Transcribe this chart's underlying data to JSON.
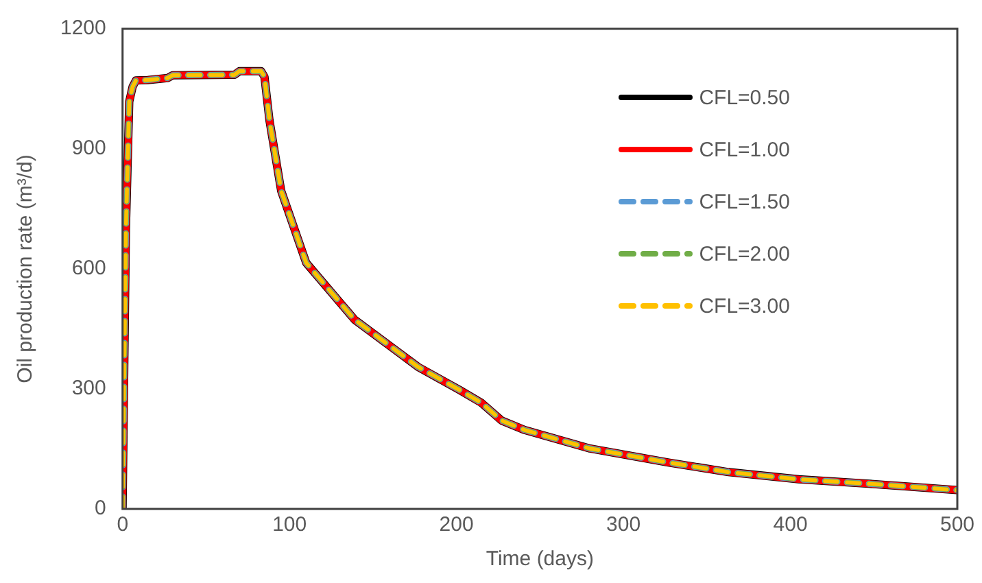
{
  "chart_data": {
    "type": "line",
    "xlabel": "Time (days)",
    "ylabel": "Oil production rate (m³/d)",
    "xlim": [
      0,
      500
    ],
    "xticks": [
      0,
      100,
      200,
      300,
      400,
      500
    ],
    "ylim": [
      0,
      1200
    ],
    "yticks": [
      0,
      300,
      600,
      900,
      1200
    ],
    "grid": false,
    "legend": "top right",
    "marker": "none",
    "x": [
      0,
      2,
      4,
      6,
      8,
      15,
      27,
      30,
      67,
      70,
      83,
      85,
      88,
      95,
      110,
      139,
      177,
      202,
      215,
      227,
      241,
      280,
      327,
      363,
      405,
      447,
      500
    ],
    "series": [
      {
        "name": "CFL=0.50",
        "color": "#000000",
        "line_style": "solid",
        "values": [
          0,
          700,
          1018,
          1055,
          1071,
          1072,
          1077,
          1084,
          1085,
          1094,
          1094,
          1080,
          971,
          795,
          615,
          473,
          355,
          297,
          265,
          221,
          197,
          151,
          116,
          92,
          74,
          63,
          47
        ]
      },
      {
        "name": "CFL=1.00",
        "color": "#ff0000",
        "line_style": "solid",
        "values": [
          0,
          700,
          1018,
          1055,
          1071,
          1072,
          1077,
          1084,
          1085,
          1094,
          1094,
          1080,
          971,
          795,
          615,
          473,
          355,
          297,
          265,
          221,
          197,
          151,
          116,
          92,
          74,
          63,
          47
        ]
      },
      {
        "name": "CFL=1.50",
        "color": "#5b9bd5",
        "line_style": "dashed",
        "values": [
          0,
          700,
          1018,
          1055,
          1071,
          1072,
          1077,
          1084,
          1085,
          1094,
          1094,
          1080,
          971,
          795,
          615,
          473,
          355,
          297,
          265,
          221,
          197,
          151,
          116,
          92,
          74,
          63,
          47
        ]
      },
      {
        "name": "CFL=2.00",
        "color": "#70ad47",
        "line_style": "dashed",
        "values": [
          0,
          700,
          1018,
          1055,
          1071,
          1072,
          1077,
          1084,
          1085,
          1094,
          1094,
          1080,
          971,
          795,
          615,
          473,
          355,
          297,
          265,
          221,
          197,
          151,
          116,
          92,
          74,
          63,
          47
        ]
      },
      {
        "name": "CFL=3.00",
        "color": "#ffc000",
        "line_style": "dashed",
        "values": [
          0,
          700,
          1018,
          1055,
          1071,
          1072,
          1077,
          1084,
          1085,
          1094,
          1094,
          1080,
          971,
          795,
          615,
          473,
          355,
          297,
          265,
          221,
          197,
          151,
          116,
          92,
          74,
          63,
          47
        ]
      }
    ]
  }
}
